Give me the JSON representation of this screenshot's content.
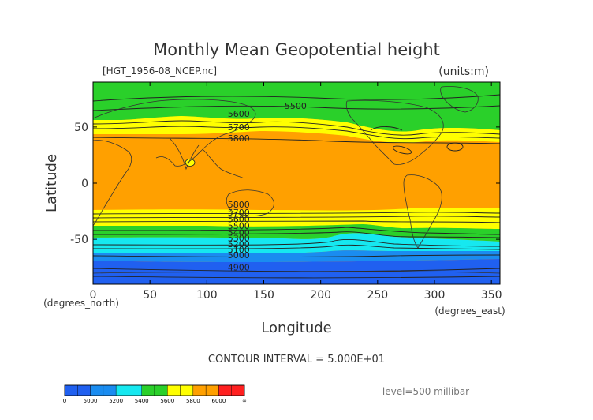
{
  "chart_data": {
    "type": "contour",
    "title": "Monthly Mean Geopotential height",
    "file_label": "[HGT_1956-08_NCEP.nc]",
    "units_label": "(units:m)",
    "xlabel": "Longitude",
    "ylabel": "Latitude",
    "x_unit_label": "(degrees_east)",
    "y_unit_label": "(degrees_north)",
    "xlim": [
      0,
      357.5
    ],
    "ylim": [
      -90,
      90
    ],
    "x_ticks": [
      0,
      50,
      100,
      150,
      200,
      250,
      300,
      350
    ],
    "y_ticks": [
      50,
      0,
      -50
    ],
    "contour_interval_text": "CONTOUR INTERVAL = 5.000E+01",
    "level_text": "level=500 millibar",
    "contour_labels": [
      {
        "text": "5500",
        "lon": 178,
        "lat": 69
      },
      {
        "text": "5600",
        "lon": 128,
        "lat": 62
      },
      {
        "text": "5700",
        "lon": 128,
        "lat": 50
      },
      {
        "text": "5800",
        "lon": 128,
        "lat": 40
      },
      {
        "text": "5800",
        "lon": 128,
        "lat": -19
      },
      {
        "text": "5700",
        "lon": 128,
        "lat": -26
      },
      {
        "text": "5600",
        "lon": 128,
        "lat": -32
      },
      {
        "text": "5500",
        "lon": 128,
        "lat": -38
      },
      {
        "text": "5400",
        "lon": 128,
        "lat": -44
      },
      {
        "text": "5300",
        "lon": 128,
        "lat": -49
      },
      {
        "text": "5200",
        "lon": 128,
        "lat": -54
      },
      {
        "text": "5100",
        "lon": 128,
        "lat": -59
      },
      {
        "text": "5000",
        "lon": 128,
        "lat": -64
      },
      {
        "text": "4900",
        "lon": 128,
        "lat": -75
      }
    ],
    "color_bands": [
      {
        "range": [
          0,
          5000
        ],
        "color": "#2060f0"
      },
      {
        "range": [
          5000,
          5200
        ],
        "color": "#1a8cf0"
      },
      {
        "range": [
          5200,
          5400
        ],
        "color": "#16e8f0"
      },
      {
        "range": [
          5400,
          5600
        ],
        "color": "#2ad02a"
      },
      {
        "range": [
          5600,
          5800
        ],
        "color": "#ffff00"
      },
      {
        "range": [
          5800,
          6000
        ],
        "color": "#ffa000"
      },
      {
        "range": [
          6000,
          99999
        ],
        "color": "#ff2020"
      }
    ],
    "colorbar_labels": [
      "0",
      "5000",
      "5200",
      "5400",
      "5600",
      "5800",
      "6000",
      "∞"
    ]
  },
  "colors": {
    "below_5000": "#2060f0",
    "5000_5200": "#1a8cf0",
    "5200_5400": "#16e8f0",
    "5400_5600": "#2ad02a",
    "5600_5800": "#ffff00",
    "5800_6000": "#ffa000",
    "above_6000": "#ff2020"
  }
}
